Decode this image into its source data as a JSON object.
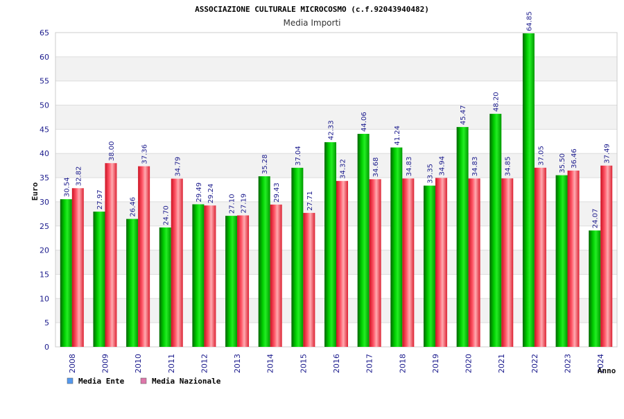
{
  "chart_data": {
    "type": "bar",
    "title": "ASSOCIAZIONE CULTURALE MICROCOSMO (c.f.92043940482)",
    "subtitle": "Media Importi",
    "xlabel": "Anno",
    "ylabel": "Euro",
    "ylim": [
      0,
      65
    ],
    "yticks": [
      0,
      5,
      10,
      15,
      20,
      25,
      30,
      35,
      40,
      45,
      50,
      55,
      60,
      65
    ],
    "grid": true,
    "legend_position": "bottom-left",
    "categories": [
      "2008",
      "2009",
      "2010",
      "2011",
      "2012",
      "2013",
      "2014",
      "2015",
      "2016",
      "2017",
      "2018",
      "2019",
      "2020",
      "2021",
      "2022",
      "2023",
      "2024"
    ],
    "series": [
      {
        "name": "Media Ente",
        "color": "#00aa00",
        "legend_color": "#5599ee",
        "values": [
          30.54,
          27.97,
          26.46,
          24.7,
          29.49,
          27.1,
          35.28,
          37.04,
          42.33,
          44.06,
          41.24,
          33.35,
          45.47,
          48.2,
          64.85,
          35.5,
          24.07
        ],
        "labels": [
          "30.54",
          "27.97",
          "26.46",
          "24.70",
          "29.49",
          "27.10",
          "35.28",
          "37.04",
          "42.33",
          "44.06",
          "41.24",
          "33.35",
          "45.47",
          "48.20",
          "64.85",
          "35.50",
          "24.07"
        ]
      },
      {
        "name": "Media Nazionale",
        "color": "#ee3344",
        "legend_color": "#dd77aa",
        "values": [
          32.82,
          38.0,
          37.36,
          34.79,
          29.24,
          27.19,
          29.43,
          27.71,
          34.32,
          34.68,
          34.83,
          34.94,
          34.83,
          34.85,
          37.05,
          36.46,
          37.49
        ],
        "labels": [
          "32.82",
          "38.00",
          "37.36",
          "34.79",
          "29.24",
          "27.19",
          "29.43",
          "27.71",
          "34.32",
          "34.68",
          "34.83",
          "34.94",
          "34.83",
          "34.85",
          "37.05",
          "36.46",
          "37.49"
        ]
      }
    ]
  }
}
